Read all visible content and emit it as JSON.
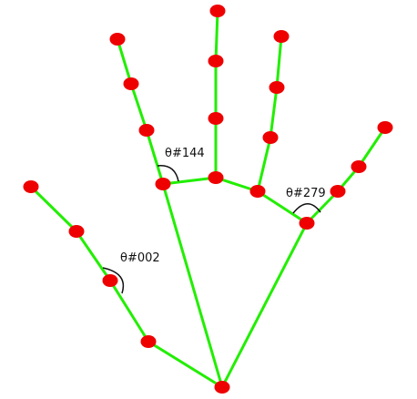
{
  "colors": {
    "bone": "#22ee00",
    "joint": "#ee0000",
    "annotation": "#111111",
    "background": "#ffffff"
  },
  "angle_labels": [
    {
      "id": "angle-index-mcp",
      "text": "θ#144"
    },
    {
      "id": "angle-ring-mcp",
      "text": "θ#279"
    },
    {
      "id": "angle-thumb-ip",
      "text": "θ#002"
    }
  ]
}
